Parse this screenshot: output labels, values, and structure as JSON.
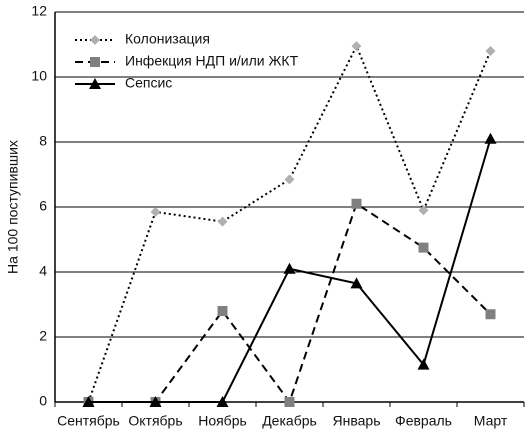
{
  "chart_data": {
    "type": "line",
    "y_label": "На 100 поступивших",
    "categories": [
      "Сентябрь",
      "Октябрь",
      "Ноябрь",
      "Декабрь",
      "Январь",
      "Февраль",
      "Март"
    ],
    "series": [
      {
        "name": "Колонизация",
        "color": "#b0b0b0",
        "line_style": "dotted",
        "marker": "diamond",
        "values": [
          0,
          5.85,
          5.55,
          6.85,
          10.95,
          5.9,
          10.8
        ]
      },
      {
        "name": "Инфекция НДП и/или ЖКТ",
        "color": "#808080",
        "line_style": "dashed",
        "marker": "square",
        "values": [
          0,
          0,
          2.8,
          0,
          6.1,
          4.75,
          2.7
        ]
      },
      {
        "name": "Сепсис",
        "color": "#000000",
        "line_style": "solid",
        "marker": "triangle",
        "values": [
          0,
          0,
          0,
          4.1,
          3.65,
          1.15,
          8.1
        ]
      }
    ],
    "ylim": [
      0,
      12
    ],
    "yticks": [
      0,
      2,
      4,
      6,
      8,
      10,
      12
    ],
    "grid": true,
    "legend": "upper left"
  }
}
